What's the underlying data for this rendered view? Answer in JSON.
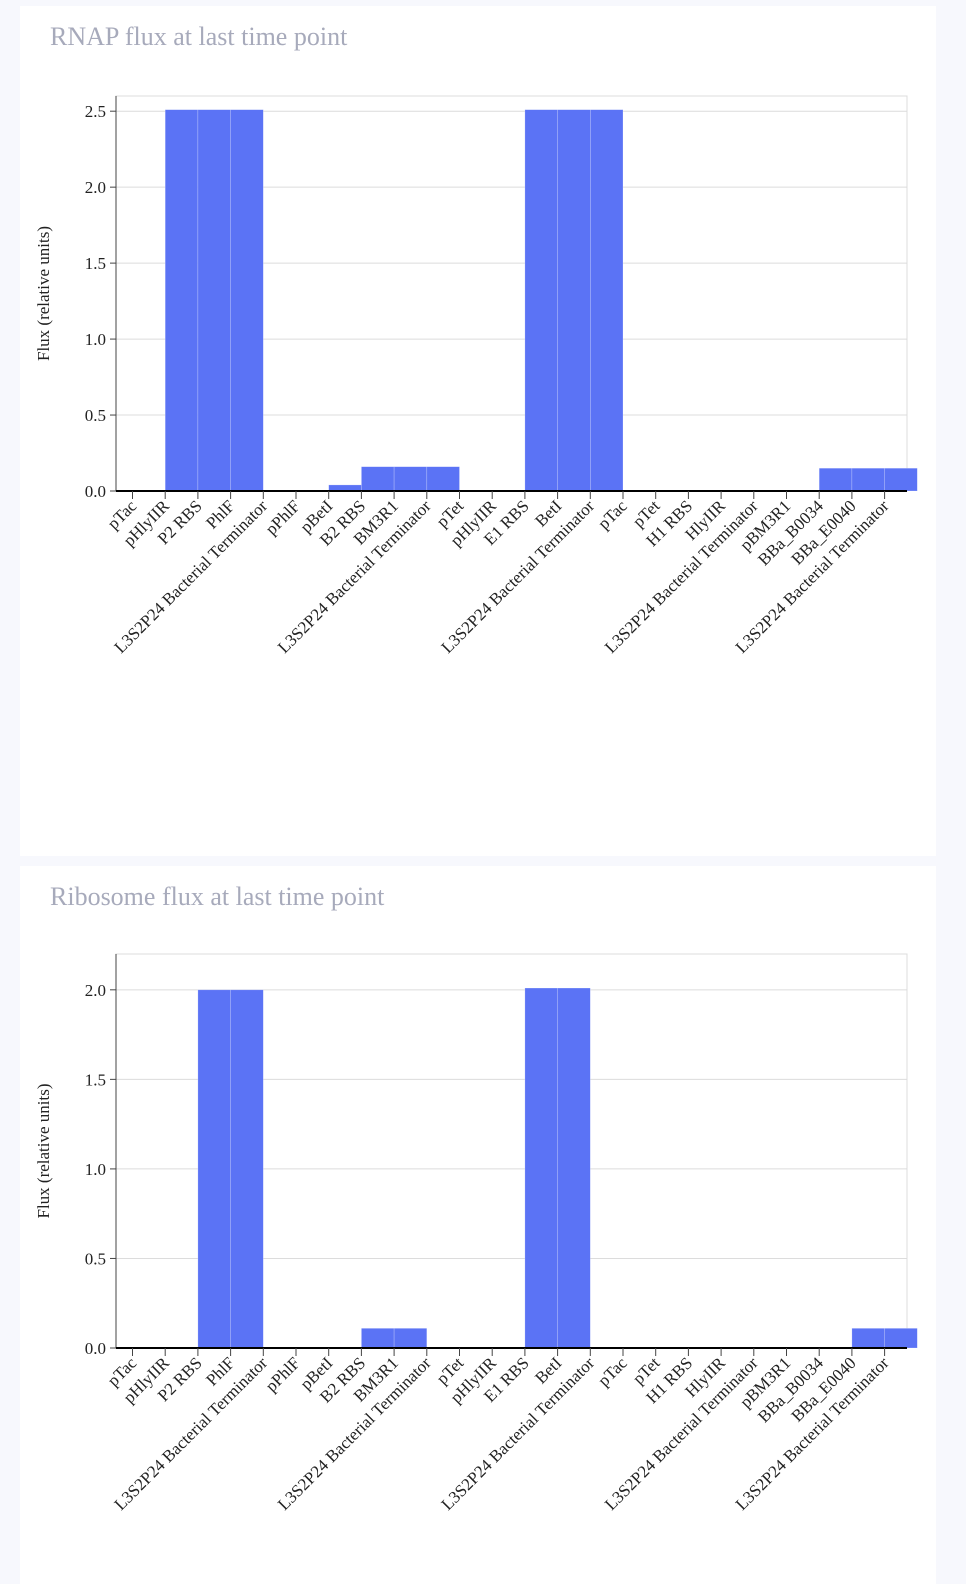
{
  "chart_data": [
    {
      "type": "bar",
      "title": "RNAP flux at last time point",
      "ylabel": "Flux (relative units)",
      "ylim": [
        0,
        2.6
      ],
      "yticks": [
        0.0,
        0.5,
        1.0,
        1.5,
        2.0,
        2.5
      ],
      "ytick_labels": [
        "0.0",
        "0.5",
        "1.0",
        "1.5",
        "2.0",
        "2.5"
      ],
      "grid": true,
      "bar_color": "#5b73f5",
      "categories": [
        "pTac",
        "pHlyIIR",
        "P2 RBS",
        "PhlF",
        "L3S2P24 Bacterial Terminator",
        "pPhlF",
        "pBetI",
        "B2 RBS",
        "BM3R1",
        "L3S2P24 Bacterial Terminator",
        "pTet",
        "pHlyIIR",
        "E1 RBS",
        "BetI",
        "L3S2P24 Bacterial Terminator",
        "pTac",
        "pTet",
        "H1 RBS",
        "HlyIIR",
        "L3S2P24 Bacterial Terminator",
        "pBM3R1",
        "BBa_B0034",
        "BBa_E0040",
        "L3S2P24 Bacterial Terminator"
      ],
      "bar_edges": [
        0,
        1,
        2,
        3,
        4,
        5,
        6,
        7,
        8,
        9,
        10,
        11,
        12,
        13,
        14,
        15,
        16,
        17,
        18,
        19,
        20,
        21,
        22,
        23,
        24
      ],
      "values": [
        0,
        2.51,
        2.51,
        2.51,
        0,
        0,
        0.04,
        0.16,
        0.16,
        0.16,
        0,
        0,
        2.51,
        2.51,
        2.51,
        0,
        0,
        0,
        0,
        0,
        0,
        0.15,
        0.15,
        0.15
      ]
    },
    {
      "type": "bar",
      "title": "Ribosome flux at last time point",
      "ylabel": "Flux (relative units)",
      "ylim": [
        0,
        2.2
      ],
      "yticks": [
        0.0,
        0.5,
        1.0,
        1.5,
        2.0
      ],
      "ytick_labels": [
        "0.0",
        "0.5",
        "1.0",
        "1.5",
        "2.0"
      ],
      "grid": true,
      "bar_color": "#5b73f5",
      "categories": [
        "pTac",
        "pHlyIIR",
        "P2 RBS",
        "PhlF",
        "L3S2P24 Bacterial Terminator",
        "pPhlF",
        "pBetI",
        "B2 RBS",
        "BM3R1",
        "L3S2P24 Bacterial Terminator",
        "pTet",
        "pHlyIIR",
        "E1 RBS",
        "BetI",
        "L3S2P24 Bacterial Terminator",
        "pTac",
        "pTet",
        "H1 RBS",
        "HlyIIR",
        "L3S2P24 Bacterial Terminator",
        "pBM3R1",
        "BBa_B0034",
        "BBa_E0040",
        "L3S2P24 Bacterial Terminator"
      ],
      "bar_edges": [
        0,
        1,
        2,
        3,
        4,
        5,
        6,
        7,
        8,
        9,
        10,
        11,
        12,
        13,
        14,
        15,
        16,
        17,
        18,
        19,
        20,
        21,
        22,
        23,
        24
      ],
      "values": [
        0,
        0,
        2.0,
        2.0,
        0,
        0,
        0,
        0.11,
        0.11,
        0,
        0,
        0,
        2.01,
        2.01,
        0,
        0,
        0,
        0,
        0,
        0,
        0,
        0,
        0.11,
        0.11
      ]
    }
  ]
}
